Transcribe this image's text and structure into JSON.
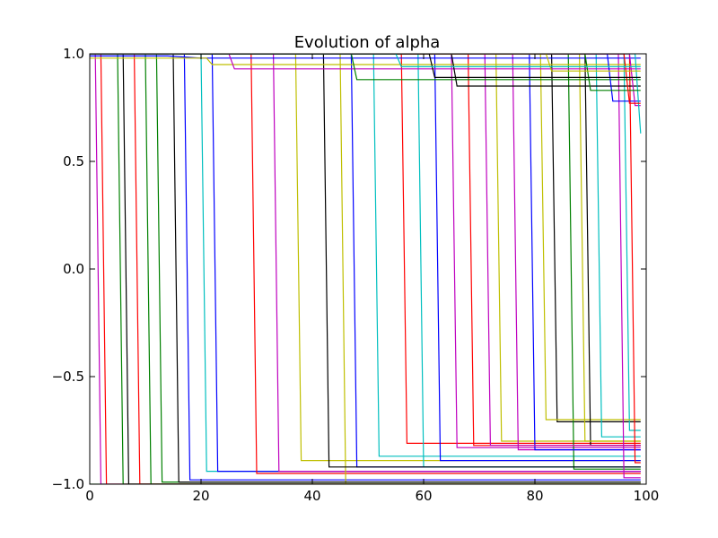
{
  "chart_data": {
    "type": "line",
    "title": "Evolution of alpha",
    "xlabel": "",
    "ylabel": "",
    "xlim": [
      0,
      100
    ],
    "ylim": [
      -1.0,
      1.0
    ],
    "xticks": [
      0,
      20,
      40,
      60,
      80,
      100
    ],
    "xtick_labels": [
      "0",
      "20",
      "40",
      "60",
      "80",
      "100"
    ],
    "yticks": [
      1.0,
      0.5,
      0.0,
      -0.5,
      -1.0
    ],
    "ytick_labels": [
      "1.0",
      "0.5",
      "0.0",
      "−0.5",
      "−1.0"
    ],
    "grid": false,
    "legend": "none",
    "series": [
      {
        "color": "#0000ff",
        "points": [
          [
            0,
            1.0
          ],
          [
            17,
            1.0
          ],
          [
            18,
            -0.98
          ],
          [
            99,
            -0.98
          ]
        ]
      },
      {
        "color": "#008000",
        "points": [
          [
            0,
            -1.0
          ],
          [
            99,
            -1.0
          ]
        ]
      },
      {
        "color": "#ff0000",
        "points": [
          [
            0,
            1.0
          ],
          [
            2,
            1.0
          ],
          [
            3,
            -1.0
          ],
          [
            99,
            -1.0
          ]
        ]
      },
      {
        "color": "#00bfbf",
        "points": [
          [
            0,
            1.0
          ],
          [
            20,
            1.0
          ],
          [
            21,
            -0.94
          ],
          [
            99,
            -0.94
          ]
        ]
      },
      {
        "color": "#bf00bf",
        "points": [
          [
            0,
            1.0
          ],
          [
            1,
            1.0
          ],
          [
            2,
            -1.0
          ],
          [
            99,
            -1.0
          ]
        ]
      },
      {
        "color": "#bfbf00",
        "points": [
          [
            0,
            1.0
          ],
          [
            37,
            1.0
          ],
          [
            38,
            -0.89
          ],
          [
            99,
            -0.89
          ]
        ]
      },
      {
        "color": "#000000",
        "points": [
          [
            0,
            1.0
          ],
          [
            6,
            1.0
          ],
          [
            7,
            -1.0
          ],
          [
            99,
            -1.0
          ]
        ]
      },
      {
        "color": "#0000ff",
        "points": [
          [
            0,
            1.0
          ],
          [
            22,
            1.0
          ],
          [
            23,
            -0.94
          ],
          [
            99,
            -0.94
          ]
        ]
      },
      {
        "color": "#008000",
        "points": [
          [
            0,
            1.0
          ],
          [
            12,
            1.0
          ],
          [
            13,
            -0.99
          ],
          [
            99,
            -0.99
          ]
        ]
      },
      {
        "color": "#ff0000",
        "points": [
          [
            0,
            1.0
          ],
          [
            29,
            1.0
          ],
          [
            30,
            -0.95
          ],
          [
            99,
            -0.95
          ]
        ]
      },
      {
        "color": "#00bfbf",
        "points": [
          [
            0,
            1.0
          ],
          [
            51,
            1.0
          ],
          [
            52,
            -0.87
          ],
          [
            99,
            -0.87
          ]
        ]
      },
      {
        "color": "#bf00bf",
        "points": [
          [
            0,
            1.0
          ],
          [
            33,
            1.0
          ],
          [
            34,
            -0.94
          ],
          [
            99,
            -0.94
          ]
        ]
      },
      {
        "color": "#bfbf00",
        "points": [
          [
            0,
            1.0
          ],
          [
            45,
            1.0
          ],
          [
            46,
            -1.0
          ],
          [
            99,
            -1.0
          ]
        ]
      },
      {
        "color": "#000000",
        "points": [
          [
            0,
            1.0
          ],
          [
            15,
            1.0
          ],
          [
            16,
            -0.99
          ],
          [
            99,
            -0.99
          ]
        ]
      },
      {
        "color": "#0000ff",
        "points": [
          [
            0,
            1.0
          ],
          [
            47,
            1.0
          ],
          [
            48,
            -0.92
          ],
          [
            99,
            -0.92
          ]
        ]
      },
      {
        "color": "#008000",
        "points": [
          [
            0,
            1.0
          ],
          [
            5,
            1.0
          ],
          [
            6,
            -1.0
          ],
          [
            99,
            -1.0
          ]
        ]
      },
      {
        "color": "#ff0000",
        "points": [
          [
            0,
            1.0
          ],
          [
            56,
            1.0
          ],
          [
            57,
            -0.81
          ],
          [
            99,
            -0.81
          ]
        ]
      },
      {
        "color": "#00bfbf",
        "points": [
          [
            0,
            1.0
          ],
          [
            59,
            1.0
          ],
          [
            60,
            -0.92
          ],
          [
            99,
            -0.92
          ]
        ]
      },
      {
        "color": "#bf00bf",
        "points": [
          [
            0,
            1.0
          ],
          [
            65,
            1.0
          ],
          [
            66,
            -0.83
          ],
          [
            99,
            -0.83
          ]
        ]
      },
      {
        "color": "#bfbf00",
        "points": [
          [
            0,
            1.0
          ],
          [
            73,
            1.0
          ],
          [
            74,
            -0.8
          ],
          [
            99,
            -0.8
          ]
        ]
      },
      {
        "color": "#000000",
        "points": [
          [
            0,
            1.0
          ],
          [
            83,
            1.0
          ],
          [
            84,
            -0.71
          ],
          [
            99,
            -0.71
          ]
        ]
      },
      {
        "color": "#0000ff",
        "points": [
          [
            0,
            1.0
          ],
          [
            62,
            1.0
          ],
          [
            63,
            -0.89
          ],
          [
            99,
            -0.89
          ]
        ]
      },
      {
        "color": "#008000",
        "points": [
          [
            0,
            1.0
          ],
          [
            86,
            1.0
          ],
          [
            87,
            -0.93
          ],
          [
            99,
            -0.93
          ]
        ]
      },
      {
        "color": "#ff0000",
        "points": [
          [
            0,
            1.0
          ],
          [
            8,
            1.0
          ],
          [
            9,
            -1.0
          ],
          [
            99,
            -1.0
          ]
        ]
      },
      {
        "color": "#00bfbf",
        "points": [
          [
            0,
            1.0
          ],
          [
            96,
            1.0
          ],
          [
            97,
            -0.75
          ],
          [
            99,
            -0.75
          ]
        ]
      },
      {
        "color": "#bf00bf",
        "points": [
          [
            0,
            1.0
          ],
          [
            76,
            1.0
          ],
          [
            77,
            -0.84
          ],
          [
            99,
            -0.84
          ]
        ]
      },
      {
        "color": "#bfbf00",
        "points": [
          [
            0,
            1.0
          ],
          [
            81,
            1.0
          ],
          [
            82,
            -0.7
          ],
          [
            99,
            -0.7
          ]
        ]
      },
      {
        "color": "#000000",
        "points": [
          [
            0,
            1.0
          ],
          [
            89,
            1.0
          ],
          [
            90,
            -0.82
          ],
          [
            99,
            -0.82
          ]
        ]
      },
      {
        "color": "#0000ff",
        "points": [
          [
            0,
            1.0
          ],
          [
            79,
            1.0
          ],
          [
            80,
            -0.84
          ],
          [
            99,
            -0.84
          ]
        ]
      },
      {
        "color": "#008000",
        "points": [
          [
            0,
            1.0
          ],
          [
            10,
            1.0
          ],
          [
            11,
            -1.0
          ],
          [
            99,
            -1.0
          ]
        ]
      },
      {
        "color": "#ff0000",
        "points": [
          [
            0,
            1.0
          ],
          [
            68,
            1.0
          ],
          [
            69,
            -0.82
          ],
          [
            99,
            -0.82
          ]
        ]
      },
      {
        "color": "#00bfbf",
        "points": [
          [
            0,
            1.0
          ],
          [
            91,
            1.0
          ],
          [
            92,
            -0.78
          ],
          [
            99,
            -0.78
          ]
        ]
      },
      {
        "color": "#bf00bf",
        "points": [
          [
            0,
            1.0
          ],
          [
            71,
            1.0
          ],
          [
            72,
            -0.82
          ],
          [
            99,
            -0.82
          ]
        ]
      },
      {
        "color": "#bfbf00",
        "points": [
          [
            0,
            1.0
          ],
          [
            88,
            1.0
          ],
          [
            89,
            -0.8
          ],
          [
            99,
            -0.8
          ]
        ]
      },
      {
        "color": "#000000",
        "points": [
          [
            0,
            1.0
          ],
          [
            42,
            1.0
          ],
          [
            43,
            -0.92
          ],
          [
            99,
            -0.92
          ]
        ]
      },
      {
        "color": "#ff0000",
        "points": [
          [
            0,
            1.0
          ],
          [
            97,
            1.0
          ],
          [
            98,
            -0.9
          ],
          [
            99,
            -0.9
          ]
        ]
      },
      {
        "color": "#bf00bf",
        "points": [
          [
            0,
            1.0
          ],
          [
            95,
            1.0
          ],
          [
            96,
            -0.97
          ],
          [
            99,
            -0.97
          ]
        ]
      },
      {
        "color": "#0000ff",
        "points": [
          [
            0,
            0.99
          ],
          [
            14,
            0.99
          ],
          [
            20,
            0.98
          ],
          [
            99,
            0.98
          ]
        ]
      },
      {
        "color": "#bfbf00",
        "points": [
          [
            0,
            0.98
          ],
          [
            21,
            0.98
          ],
          [
            22,
            0.95
          ],
          [
            99,
            0.95
          ]
        ]
      },
      {
        "color": "#bf00bf",
        "points": [
          [
            0,
            1.0
          ],
          [
            25,
            1.0
          ],
          [
            26,
            0.93
          ],
          [
            99,
            0.93
          ]
        ]
      },
      {
        "color": "#008000",
        "points": [
          [
            0,
            1.0
          ],
          [
            47,
            1.0
          ],
          [
            48,
            0.88
          ],
          [
            99,
            0.88
          ]
        ]
      },
      {
        "color": "#000000",
        "points": [
          [
            0,
            1.0
          ],
          [
            65,
            1.0
          ],
          [
            66,
            0.85
          ],
          [
            99,
            0.85
          ]
        ]
      },
      {
        "color": "#0000ff",
        "points": [
          [
            0,
            1.0
          ],
          [
            93,
            1.0
          ],
          [
            94,
            0.78
          ],
          [
            99,
            0.78
          ]
        ]
      },
      {
        "color": "#bf00bf",
        "points": [
          [
            0,
            1.0
          ],
          [
            97,
            1.0
          ],
          [
            98,
            0.76
          ],
          [
            99,
            0.76
          ]
        ]
      },
      {
        "color": "#00bfbf",
        "points": [
          [
            0,
            1.0
          ],
          [
            98,
            1.0
          ],
          [
            99,
            0.63
          ]
        ]
      },
      {
        "color": "#008000",
        "points": [
          [
            0,
            1.0
          ],
          [
            89,
            1.0
          ],
          [
            90,
            0.83
          ],
          [
            99,
            0.83
          ]
        ]
      },
      {
        "color": "#ff0000",
        "points": [
          [
            0,
            1.0
          ],
          [
            96,
            1.0
          ],
          [
            97,
            0.77
          ],
          [
            99,
            0.77
          ]
        ]
      },
      {
        "color": "#bfbf00",
        "points": [
          [
            0,
            1.0
          ],
          [
            82,
            1.0
          ],
          [
            83,
            0.92
          ],
          [
            99,
            0.92
          ]
        ]
      },
      {
        "color": "#000000",
        "points": [
          [
            0,
            1.0
          ],
          [
            61,
            1.0
          ],
          [
            62,
            0.89
          ],
          [
            99,
            0.89
          ]
        ]
      },
      {
        "color": "#00bfbf",
        "points": [
          [
            0,
            1.0
          ],
          [
            55,
            1.0
          ],
          [
            56,
            0.94
          ],
          [
            99,
            0.94
          ]
        ]
      }
    ]
  }
}
